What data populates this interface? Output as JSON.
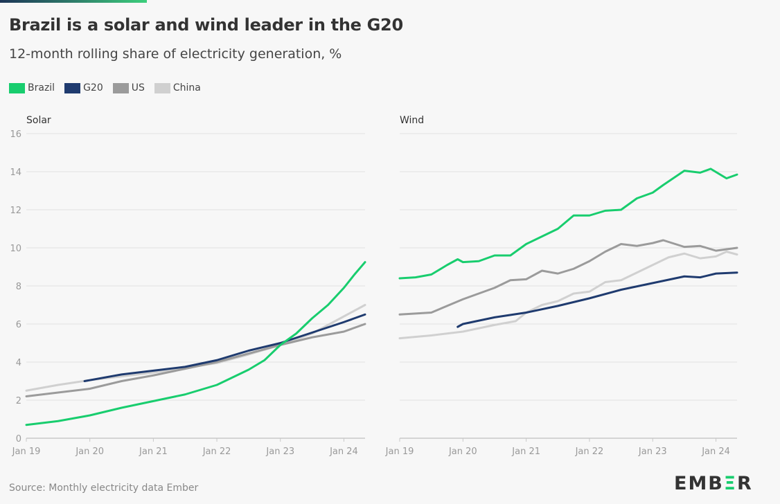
{
  "title": "Brazil is a solar and wind leader in the G20",
  "subtitle": "12-month rolling share of electricity generation, %",
  "source": "Source: Monthly electricity data Ember",
  "logo": "EMBER",
  "legend": [
    {
      "name": "Brazil",
      "color": "#18cd6e"
    },
    {
      "name": "G20",
      "color": "#1f3b6f"
    },
    {
      "name": "US",
      "color": "#9b9b9b"
    },
    {
      "name": "China",
      "color": "#d0d0d0"
    }
  ],
  "chart_data": [
    {
      "type": "line",
      "title": "Solar",
      "x_unit": "months since Jan 2019",
      "xticks": [
        {
          "m": 0,
          "label": "Jan 19"
        },
        {
          "m": 12,
          "label": "Jan 20"
        },
        {
          "m": 24,
          "label": "Jan 21"
        },
        {
          "m": 36,
          "label": "Jan 22"
        },
        {
          "m": 48,
          "label": "Jan 23"
        },
        {
          "m": 60,
          "label": "Jan 24"
        }
      ],
      "yticks": [
        0,
        2,
        4,
        6,
        8,
        10,
        12,
        14,
        16
      ],
      "ylim": [
        0,
        16
      ],
      "xlim": [
        0,
        64
      ],
      "series": [
        {
          "name": "China",
          "points": [
            [
              0,
              2.5
            ],
            [
              6,
              2.8
            ],
            [
              12,
              3.05
            ],
            [
              18,
              3.25
            ],
            [
              24,
              3.45
            ],
            [
              30,
              3.7
            ],
            [
              36,
              3.95
            ],
            [
              42,
              4.4
            ],
            [
              48,
              4.9
            ],
            [
              54,
              5.5
            ],
            [
              60,
              6.4
            ],
            [
              64,
              7.0
            ]
          ]
        },
        {
          "name": "US",
          "points": [
            [
              0,
              2.2
            ],
            [
              6,
              2.4
            ],
            [
              12,
              2.6
            ],
            [
              18,
              3.0
            ],
            [
              24,
              3.3
            ],
            [
              30,
              3.65
            ],
            [
              36,
              4.0
            ],
            [
              42,
              4.45
            ],
            [
              48,
              4.9
            ],
            [
              54,
              5.3
            ],
            [
              60,
              5.6
            ],
            [
              64,
              6.0
            ]
          ]
        },
        {
          "name": "G20",
          "points": [
            [
              11,
              3.0
            ],
            [
              18,
              3.35
            ],
            [
              24,
              3.55
            ],
            [
              30,
              3.75
            ],
            [
              36,
              4.1
            ],
            [
              42,
              4.6
            ],
            [
              48,
              5.0
            ],
            [
              54,
              5.55
            ],
            [
              60,
              6.1
            ],
            [
              64,
              6.5
            ]
          ]
        },
        {
          "name": "Brazil",
          "points": [
            [
              0,
              0.7
            ],
            [
              6,
              0.9
            ],
            [
              12,
              1.2
            ],
            [
              18,
              1.6
            ],
            [
              24,
              1.95
            ],
            [
              30,
              2.3
            ],
            [
              36,
              2.8
            ],
            [
              42,
              3.6
            ],
            [
              45,
              4.1
            ],
            [
              48,
              4.9
            ],
            [
              51,
              5.5
            ],
            [
              54,
              6.3
            ],
            [
              57,
              7.0
            ],
            [
              60,
              7.9
            ],
            [
              62,
              8.6
            ],
            [
              64,
              9.25
            ]
          ]
        }
      ]
    },
    {
      "type": "line",
      "title": "Wind",
      "x_unit": "months since Jan 2019",
      "xticks": [
        {
          "m": 0,
          "label": "Jan 19"
        },
        {
          "m": 12,
          "label": "Jan 20"
        },
        {
          "m": 24,
          "label": "Jan 21"
        },
        {
          "m": 36,
          "label": "Jan 22"
        },
        {
          "m": 48,
          "label": "Jan 23"
        },
        {
          "m": 60,
          "label": "Jan 24"
        }
      ],
      "yticks": [
        0,
        2,
        4,
        6,
        8,
        10,
        12,
        14,
        16
      ],
      "ylim": [
        0,
        16
      ],
      "xlim": [
        0,
        64
      ],
      "series": [
        {
          "name": "China",
          "points": [
            [
              0,
              5.25
            ],
            [
              6,
              5.4
            ],
            [
              12,
              5.6
            ],
            [
              18,
              5.95
            ],
            [
              22,
              6.15
            ],
            [
              24,
              6.6
            ],
            [
              27,
              7.0
            ],
            [
              30,
              7.2
            ],
            [
              33,
              7.6
            ],
            [
              36,
              7.7
            ],
            [
              39,
              8.2
            ],
            [
              42,
              8.3
            ],
            [
              45,
              8.7
            ],
            [
              48,
              9.1
            ],
            [
              51,
              9.5
            ],
            [
              54,
              9.7
            ],
            [
              57,
              9.45
            ],
            [
              60,
              9.55
            ],
            [
              62,
              9.8
            ],
            [
              64,
              9.65
            ]
          ]
        },
        {
          "name": "US",
          "points": [
            [
              0,
              6.5
            ],
            [
              6,
              6.6
            ],
            [
              12,
              7.3
            ],
            [
              18,
              7.9
            ],
            [
              21,
              8.3
            ],
            [
              24,
              8.35
            ],
            [
              27,
              8.8
            ],
            [
              30,
              8.65
            ],
            [
              33,
              8.9
            ],
            [
              36,
              9.3
            ],
            [
              39,
              9.8
            ],
            [
              42,
              10.2
            ],
            [
              45,
              10.1
            ],
            [
              48,
              10.25
            ],
            [
              50,
              10.4
            ],
            [
              54,
              10.05
            ],
            [
              57,
              10.1
            ],
            [
              60,
              9.85
            ],
            [
              64,
              10.0
            ]
          ]
        },
        {
          "name": "G20",
          "points": [
            [
              11,
              5.85
            ],
            [
              12,
              6.0
            ],
            [
              18,
              6.35
            ],
            [
              24,
              6.6
            ],
            [
              30,
              6.95
            ],
            [
              36,
              7.35
            ],
            [
              42,
              7.8
            ],
            [
              48,
              8.15
            ],
            [
              54,
              8.5
            ],
            [
              57,
              8.45
            ],
            [
              60,
              8.65
            ],
            [
              64,
              8.7
            ]
          ]
        },
        {
          "name": "Brazil",
          "points": [
            [
              0,
              8.4
            ],
            [
              3,
              8.45
            ],
            [
              6,
              8.6
            ],
            [
              9,
              9.1
            ],
            [
              11,
              9.4
            ],
            [
              12,
              9.25
            ],
            [
              15,
              9.3
            ],
            [
              18,
              9.6
            ],
            [
              21,
              9.6
            ],
            [
              24,
              10.2
            ],
            [
              27,
              10.6
            ],
            [
              30,
              11.0
            ],
            [
              33,
              11.7
            ],
            [
              36,
              11.7
            ],
            [
              39,
              11.95
            ],
            [
              42,
              12.0
            ],
            [
              45,
              12.6
            ],
            [
              48,
              12.9
            ],
            [
              50,
              13.3
            ],
            [
              54,
              14.05
            ],
            [
              57,
              13.95
            ],
            [
              59,
              14.15
            ],
            [
              62,
              13.65
            ],
            [
              64,
              13.85
            ]
          ]
        }
      ]
    }
  ]
}
